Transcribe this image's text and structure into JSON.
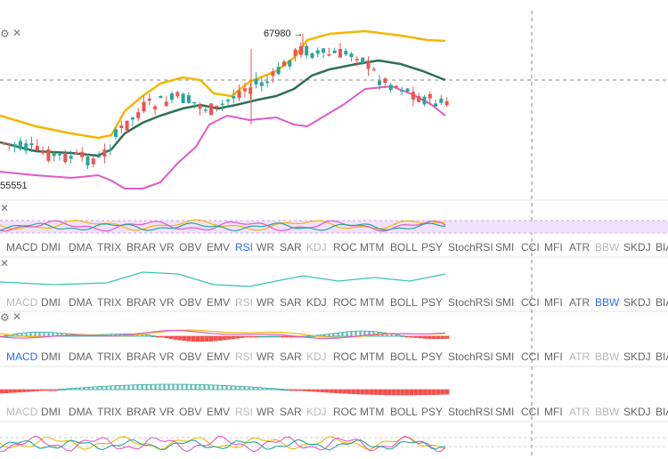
{
  "main_chart": {
    "high_label": "67980 →",
    "low_label": "55551",
    "colors": {
      "up": "#26a69a",
      "down": "#ef5350",
      "boll_upper": "#f2b705",
      "boll_lower": "#e05ac8",
      "boll_mid": "#2f6f57"
    }
  },
  "indicator_tabs": [
    "MACD",
    "DMI",
    "DMA",
    "TRIX",
    "BRAR",
    "VR",
    "OBV",
    "EMV",
    "RSI",
    "WR",
    "SAR",
    "KDJ",
    "ROC",
    "MTM",
    "BOLL",
    "PSY",
    "StochRSI",
    "SMI",
    "CCI",
    "MFI",
    "ATR",
    "BBW",
    "SKDJ",
    "BIAS"
  ],
  "tab_rows": [
    {
      "active": "RSI",
      "muted": [
        "KDJ",
        "BBW"
      ]
    },
    {
      "active": "BBW",
      "muted": [
        "MACD",
        "RSI"
      ]
    },
    {
      "active": "MACD",
      "muted": [
        "RSI",
        "KDJ",
        "ATR",
        "BBW"
      ]
    },
    {
      "active": "",
      "muted": [
        "MACD",
        "RSI",
        "KDJ",
        "ATR",
        "BBW"
      ]
    }
  ],
  "icons": {
    "settings": "gear-icon",
    "close": "close-icon"
  }
}
